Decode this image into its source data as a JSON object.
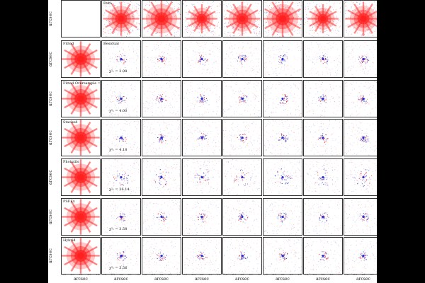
{
  "axis_label": "arcsec",
  "tick_labels": [
    "-1.0",
    "-0.5",
    "0.0",
    "0.5",
    "1.0"
  ],
  "rows": [
    {
      "model": "",
      "residual_label": "Data",
      "chi2_text": ""
    },
    {
      "model": "Fitted",
      "residual_label": "Residual",
      "chi2_text": "χ²ᵥ = 2.98"
    },
    {
      "model": "Fitted Oversample = 2",
      "residual_label": "",
      "chi2_text": "χ²ᵥ = 4.00"
    },
    {
      "model": "Stacked",
      "residual_label": "",
      "chi2_text": "χ²ᵥ = 4.18"
    },
    {
      "model": "Photutils",
      "residual_label": "",
      "chi2_text": "χ²ᵥ = 36.14"
    },
    {
      "model": "PSFEx",
      "residual_label": "",
      "chi2_text": "χ²ᵥ = 3.58"
    },
    {
      "model": "Hybrid",
      "residual_label": "",
      "chi2_text": "χ²ᵥ = 3.56"
    }
  ],
  "colors": {
    "positive": "#ff2020",
    "negative": "#2030d0",
    "frame": "#333333"
  }
}
